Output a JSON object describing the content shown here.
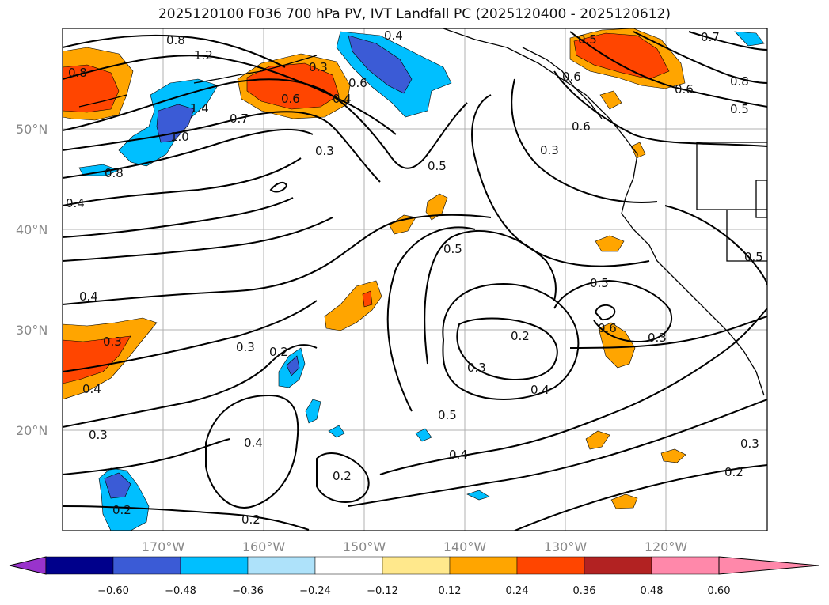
{
  "title": "2025120100 F036 700 hPa PV, IVT Landfall PC (2025120400 - 2025120612)",
  "map": {
    "lat_ticks": [
      "50°N",
      "40°N",
      "30°N",
      "20°N"
    ],
    "lon_ticks": [
      "170°W",
      "160°W",
      "150°W",
      "140°W",
      "130°W",
      "120°W"
    ],
    "contour_labels": [
      "0.8",
      "1.2",
      "1.4",
      "1.0",
      "0.7",
      "0.6",
      "0.4",
      "0.3",
      "0.5",
      "0.8",
      "0.8",
      "0.4",
      "0.3",
      "0.4",
      "0.3",
      "0.2",
      "0.3",
      "0.2",
      "0.4",
      "0.2",
      "0.2",
      "0.5",
      "0.3",
      "0.2",
      "0.5",
      "0.4",
      "0.4",
      "0.5",
      "0.6",
      "0.3",
      "0.6",
      "0.6",
      "0.5",
      "0.7",
      "0.8",
      "0.6",
      "0.5",
      "0.3",
      "0.2",
      "0.3",
      "0.3",
      "0.4",
      "0.5",
      "0.6",
      "0.4"
    ]
  },
  "colorbar": {
    "tick_labels": [
      "−0.60",
      "−0.48",
      "−0.36",
      "−0.24",
      "−0.12",
      "0.12",
      "0.24",
      "0.36",
      "0.48",
      "0.60"
    ],
    "colors": [
      "#9933cc",
      "#00008b",
      "#3b5bd6",
      "#00bfff",
      "#aee2fa",
      "#ffffff",
      "#ffe88c",
      "#ffa500",
      "#ff4500",
      "#b22222",
      "#ff88aa"
    ]
  }
}
